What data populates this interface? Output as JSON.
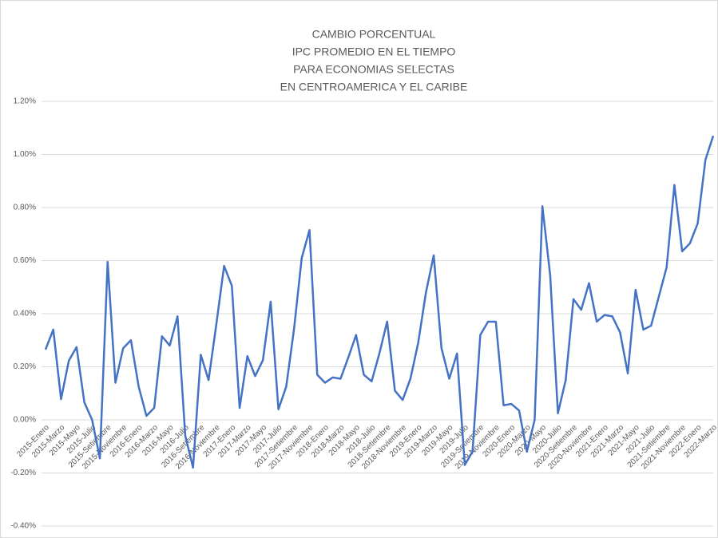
{
  "chart_data": {
    "type": "line",
    "title": [
      "CAMBIO PORCENTUAL",
      "IPC PROMEDIO EN EL TIEMPO",
      "PARA ECONOMIAS SELECTAS",
      "EN CENTROAMERICA Y EL CARIBE"
    ],
    "categories": [
      "2015-Enero",
      null,
      "2015-Marzo",
      null,
      "2015-Mayo",
      null,
      "2015-Julio",
      null,
      "2015-Setiembre",
      null,
      "2015-Noviembre",
      null,
      "2016-Enero",
      null,
      "2016-Marzo",
      null,
      "2016-Mayo",
      null,
      "2016-Julio",
      null,
      "2016-Setiembre",
      null,
      "2016-Noviembre",
      null,
      "2017-Enero",
      null,
      "2017-Marzo",
      null,
      "2017-Mayo",
      null,
      "2017-Julio",
      null,
      "2017-Setiembre",
      null,
      "2017-Noviembre",
      null,
      "2018-Enero",
      null,
      "2018-Marzo",
      null,
      "2018-Mayo",
      null,
      "2018-Julio",
      null,
      "2018-Setiembre",
      null,
      "2018-Noviembre",
      null,
      "2019-Enero",
      null,
      "2019-Marzo",
      null,
      "2019-Mayo",
      null,
      "2019-Julio",
      null,
      "2019-Setiembre",
      null,
      "2019-Noviembre",
      null,
      "2020-Enero",
      null,
      "2020-Marzo",
      null,
      "2020-Mayo",
      null,
      "2020-Julio",
      null,
      "2020-Setiembre",
      null,
      "2020-Noviembre",
      null,
      "2021-Enero",
      null,
      "2021-Marzo",
      null,
      "2021-Mayo",
      null,
      "2021-Julio",
      null,
      "2021-Setiembre",
      null,
      "2021-Noviembre",
      null,
      "2022-Enero",
      null,
      "2022-Marzo"
    ],
    "series": [
      {
        "color": "#4472c4",
        "values": [
          0.265,
          0.34,
          0.078,
          0.223,
          0.274,
          0.066,
          0.0,
          -0.145,
          0.595,
          0.14,
          0.27,
          0.3,
          0.125,
          0.015,
          0.045,
          0.315,
          0.28,
          0.39,
          -0.06,
          -0.18,
          0.245,
          0.15,
          0.36,
          0.58,
          0.505,
          0.045,
          0.24,
          0.165,
          0.225,
          0.445,
          0.04,
          0.125,
          0.34,
          0.61,
          0.715,
          0.17,
          0.14,
          0.16,
          0.155,
          0.235,
          0.32,
          0.17,
          0.145,
          0.25,
          0.37,
          0.11,
          0.075,
          0.155,
          0.29,
          0.48,
          0.62,
          0.27,
          0.155,
          0.25,
          -0.17,
          -0.12,
          0.32,
          0.37,
          0.37,
          0.055,
          0.06,
          0.035,
          -0.12,
          0.0,
          0.805,
          0.545,
          0.025,
          0.15,
          0.455,
          0.415,
          0.515,
          0.37,
          0.395,
          0.39,
          0.33,
          0.175,
          0.49,
          0.34,
          0.355,
          0.465,
          0.575,
          0.885,
          0.635,
          0.665,
          0.74,
          0.98,
          1.07
        ]
      }
    ],
    "ylim": [
      -0.4,
      1.2
    ],
    "yticks": [
      {
        "value": -0.4,
        "label": "-0.40%"
      },
      {
        "value": -0.2,
        "label": "-0.20%"
      },
      {
        "value": 0,
        "label": "0.00%"
      },
      {
        "value": 0.2,
        "label": "0.20%"
      },
      {
        "value": 0.4,
        "label": "0.40%"
      },
      {
        "value": 0.6,
        "label": "0.60%"
      },
      {
        "value": 0.8,
        "label": "0.80%"
      },
      {
        "value": 1.0,
        "label": "1.00%"
      },
      {
        "value": 1.2,
        "label": "1.20%"
      }
    ],
    "grid": true
  }
}
